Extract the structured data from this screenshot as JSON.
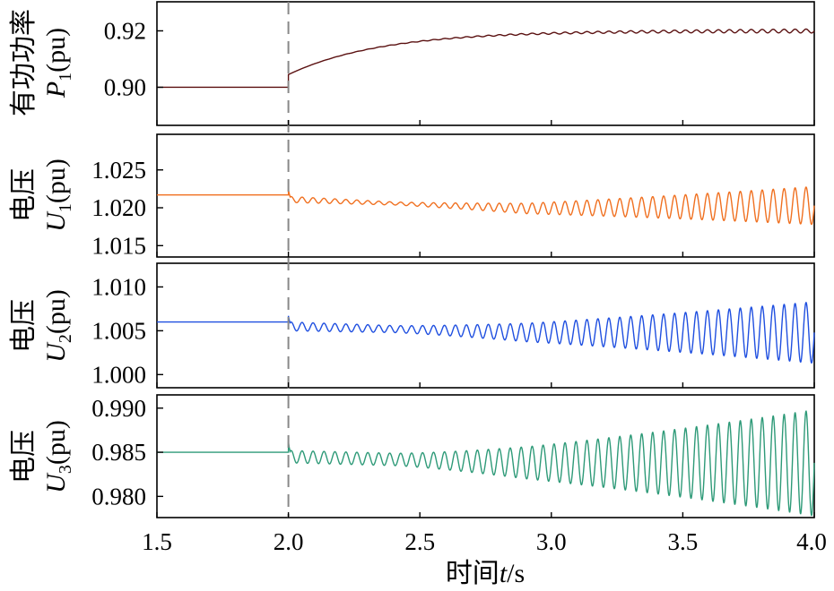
{
  "chart_data": [
    {
      "type": "line",
      "panel": "active-power",
      "ylabel_cn": "有功功率",
      "ylabel_sym": "P",
      "ylabel_sub": "1",
      "ylabel_unit": "(pu)",
      "ylim": [
        0.8865,
        0.9303
      ],
      "yticks": [
        "0.92",
        "0.90"
      ],
      "ytick_values": [
        0.92,
        0.9
      ],
      "color": "#5a1010",
      "series": {
        "initial": 0.9,
        "step": 0.9045,
        "final": 0.92,
        "tau": 0.35,
        "osc_amp0": 0.0,
        "osc_amp1": 0.0007
      }
    },
    {
      "type": "line",
      "panel": "voltage-u1",
      "ylabel_cn": "电压",
      "ylabel_sym": "U",
      "ylabel_sub": "1",
      "ylabel_unit": "(pu)",
      "ylim": [
        1.0135,
        1.0297
      ],
      "yticks": [
        "1.025",
        "1.020",
        "1.015"
      ],
      "ytick_values": [
        1.025,
        1.02,
        1.015
      ],
      "color": "#f07020",
      "series": {
        "initial": 1.0217,
        "post_center_start": 1.0211,
        "post_center_end": 1.0199,
        "spike": 1.0224,
        "osc_amp0": 0.0004,
        "osc_amp_min": 0.0002,
        "osc_amp1": 0.0025
      }
    },
    {
      "type": "line",
      "panel": "voltage-u2",
      "ylabel_cn": "电压",
      "ylabel_sym": "U",
      "ylabel_sub": "2",
      "ylabel_unit": "(pu)",
      "ylim": [
        0.9985,
        1.0127
      ],
      "yticks": [
        "1.010",
        "1.005",
        "1.000"
      ],
      "ytick_values": [
        1.01,
        1.005,
        1.0
      ],
      "color": "#1f4fe0",
      "series": {
        "initial": 1.006,
        "post_center_start": 1.0055,
        "post_center_end": 1.0048,
        "spike": 1.0067,
        "osc_amp0": 0.0005,
        "osc_amp_min": 0.0004,
        "osc_amp1": 0.0035
      }
    },
    {
      "type": "line",
      "panel": "voltage-u3",
      "ylabel_cn": "电压",
      "ylabel_sym": "U",
      "ylabel_sub": "3",
      "ylabel_unit": "(pu)",
      "ylim": [
        0.9776,
        0.9915
      ],
      "yticks": [
        "0.990",
        "0.985",
        "0.980"
      ],
      "ytick_values": [
        0.99,
        0.985,
        0.98
      ],
      "color": "#2e9a78",
      "series": {
        "initial": 0.985,
        "post_center_start": 0.9845,
        "post_center_end": 0.9838,
        "spike": 0.9862,
        "osc_amp0": 0.0007,
        "osc_amp_min": 0.0007,
        "osc_amp1": 0.006
      }
    }
  ],
  "xaxis": {
    "label_cn": "时间",
    "label_sym": "t",
    "label_unit": "/s",
    "xlim": [
      1.5,
      4.0
    ],
    "ticks": [
      "1.5",
      "2.0",
      "2.5",
      "3.0",
      "3.5",
      "4.0"
    ],
    "tick_values": [
      1.5,
      2.0,
      2.5,
      3.0,
      3.5,
      4.0
    ]
  },
  "event": {
    "t": 2.0,
    "style": "dashed",
    "color": "#888888"
  },
  "oscillation_freq_hz": 24
}
